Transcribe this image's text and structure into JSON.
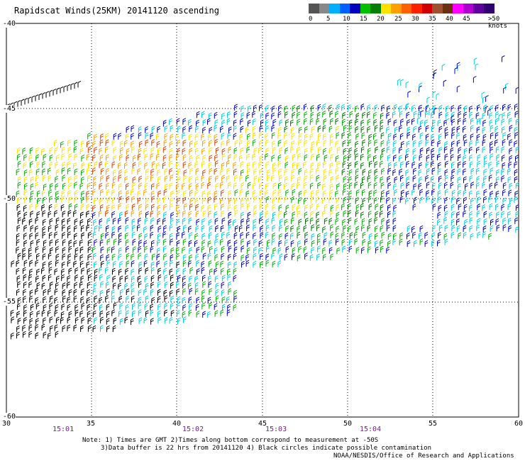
{
  "title": "Rapidscat Winds(25KM) 20141120 ascending",
  "legend": {
    "colors": [
      "#555555",
      "#888888",
      "#00b0ff",
      "#0060ff",
      "#0000c0",
      "#00c000",
      "#008000",
      "#ffe000",
      "#ffa000",
      "#ff6000",
      "#ff2000",
      "#d00000",
      "#a05030",
      "#6a3010",
      "#ff00ff",
      "#b000d0",
      "#6000a0",
      "#300070"
    ],
    "labels": [
      "0",
      "5",
      "10",
      "15",
      "20",
      "25",
      "30",
      "35",
      "40",
      "45",
      ">50 knots"
    ]
  },
  "lat_labels": [
    "-40",
    "-45",
    "-50",
    "-55",
    "-60"
  ],
  "lon_labels": [
    "30",
    "35",
    "40",
    "45",
    "50",
    "55",
    "60"
  ],
  "time_labels": [
    "15:01",
    "15:02",
    "15:03",
    "15:04"
  ],
  "notes": [
    "Note: 1) Times are GMT 2)Times along bottom correspond to measurement at -50S",
    "3)Data buffer is 22 hrs from 20141120 4) Black circles indicate possible contamination",
    "NOAA/NESDIS/Office of Research and Applications"
  ],
  "speed_colors": {
    "black": "#000000",
    "cyan": "#00d0e0",
    "blue": "#0000d0",
    "green": "#00b000",
    "dkgreen": "#007000",
    "yellow": "#ffe000",
    "orange": "#ffa000",
    "red": "#e04000"
  }
}
